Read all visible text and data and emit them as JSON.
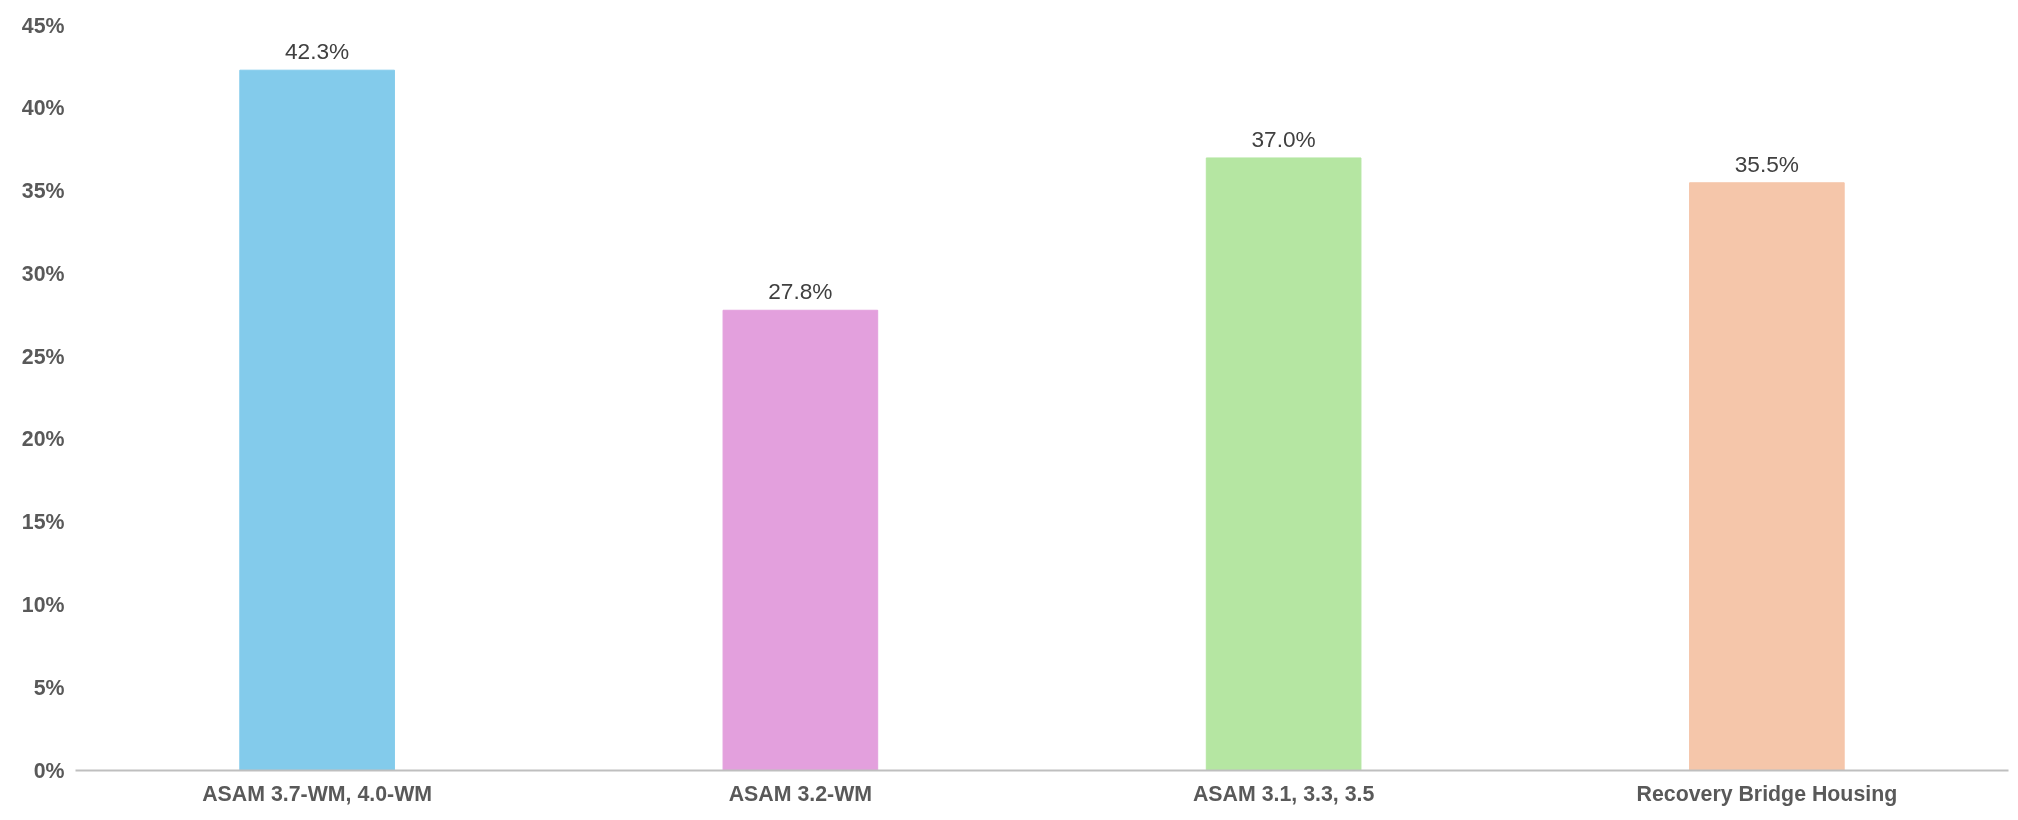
{
  "chart_data": {
    "type": "bar",
    "categories": [
      "ASAM 3.7-WM, 4.0-WM",
      "ASAM 3.2-WM",
      "ASAM 3.1, 3.3, 3.5",
      "Recovery Bridge Housing"
    ],
    "values": [
      42.3,
      27.8,
      37.0,
      35.5
    ],
    "colors": [
      "#83cbeb",
      "#e3a0dd",
      "#b5e6a2",
      "#f5c6aa"
    ],
    "value_labels": [
      "42.3%",
      "27.8%",
      "37.0%",
      "35.5%"
    ],
    "ylim": [
      0,
      45
    ],
    "yticks": [
      {
        "value": 0,
        "label": "0%"
      },
      {
        "value": 5,
        "label": "5%"
      },
      {
        "value": 10,
        "label": "10%"
      },
      {
        "value": 15,
        "label": "15%"
      },
      {
        "value": 20,
        "label": "20%"
      },
      {
        "value": 25,
        "label": "25%"
      },
      {
        "value": 30,
        "label": "30%"
      },
      {
        "value": 35,
        "label": "35%"
      },
      {
        "value": 40,
        "label": "40%"
      },
      {
        "value": 45,
        "label": "45%"
      }
    ],
    "grid": false
  }
}
